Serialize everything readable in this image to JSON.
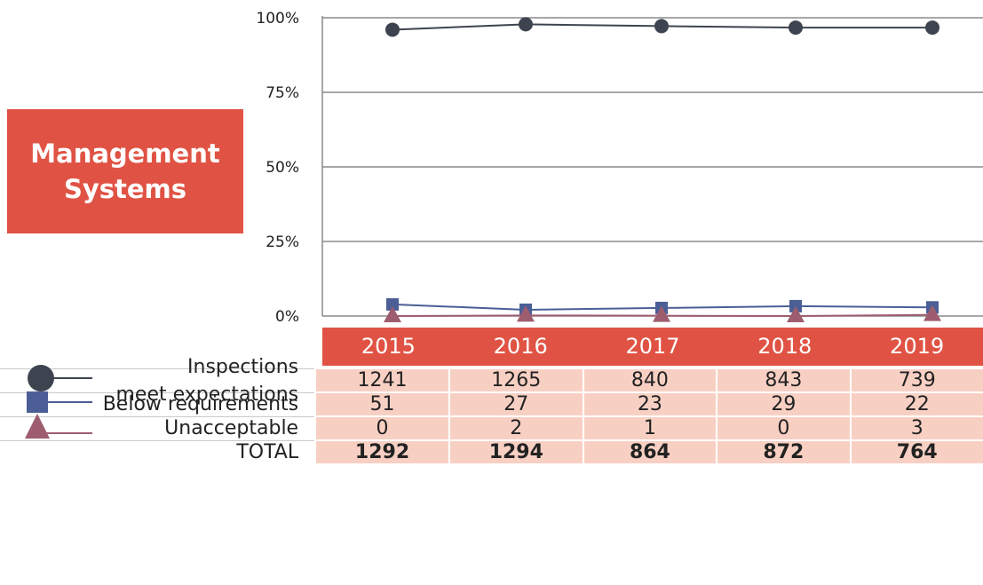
{
  "title": {
    "line1": "Management",
    "line2": "Systems"
  },
  "chart_data": {
    "type": "line",
    "categories": [
      "2015",
      "2016",
      "2017",
      "2018",
      "2019"
    ],
    "ylim": [
      0,
      100
    ],
    "yticks": [
      "0%",
      "25%",
      "50%",
      "75%",
      "100%"
    ],
    "ytick_values": [
      0,
      25,
      50,
      75,
      100
    ],
    "grid": true,
    "series": [
      {
        "name": "Inspections meet expectations",
        "marker": "circle",
        "color": "#3d4450",
        "values": [
          96.0,
          97.8,
          97.2,
          96.7,
          96.7
        ]
      },
      {
        "name": "Below requirements",
        "marker": "square",
        "color": "#4b5f96",
        "values": [
          3.9,
          2.1,
          2.7,
          3.3,
          2.9
        ]
      },
      {
        "name": "Unacceptable",
        "marker": "triangle",
        "color": "#9d5d6e",
        "values": [
          0.0,
          0.2,
          0.1,
          0.0,
          0.4
        ]
      }
    ]
  },
  "table": {
    "rows": [
      {
        "label_lines": [
          "Inspections",
          "meet expectations"
        ],
        "values": [
          "1241",
          "1265",
          "840",
          "843",
          "739"
        ]
      },
      {
        "label_lines": [
          "Below requirements"
        ],
        "values": [
          "51",
          "27",
          "23",
          "29",
          "22"
        ]
      },
      {
        "label_lines": [
          "Unacceptable"
        ],
        "values": [
          "0",
          "2",
          "1",
          "0",
          "3"
        ]
      }
    ],
    "total": {
      "label": "TOTAL",
      "values": [
        "1292",
        "1294",
        "864",
        "872",
        "764"
      ]
    }
  }
}
